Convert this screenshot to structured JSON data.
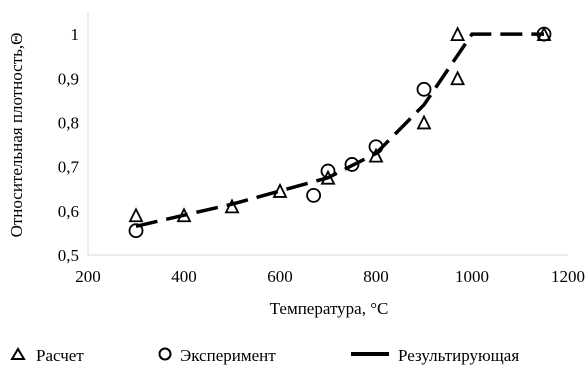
{
  "chart_data": {
    "type": "scatter",
    "title": "",
    "xlabel": "Температура, °С",
    "ylabel": "Относительная плотность,Θ",
    "xlim": [
      200,
      1200
    ],
    "ylim": [
      0.5,
      1.05
    ],
    "xticks": [
      200,
      400,
      600,
      800,
      1000,
      1200
    ],
    "yticks": [
      0.5,
      0.6,
      0.7,
      0.8,
      0.9,
      1.0
    ],
    "xtick_labels": [
      "200",
      "400",
      "600",
      "800",
      "1000",
      "1200"
    ],
    "ytick_labels": [
      "0,5",
      "0,6",
      "0,7",
      "0,8",
      "0,9",
      "1"
    ],
    "grid": false,
    "legend_position": "bottom",
    "series": [
      {
        "name": "Расчет",
        "marker": "triangle",
        "x": [
          300,
          400,
          500,
          600,
          700,
          800,
          900,
          970,
          970,
          1150
        ],
        "y": [
          0.59,
          0.59,
          0.61,
          0.645,
          0.675,
          0.725,
          0.8,
          0.9,
          1.0,
          1.0
        ]
      },
      {
        "name": "Эксперимент",
        "marker": "circle",
        "x": [
          300,
          670,
          700,
          750,
          800,
          900,
          1150
        ],
        "y": [
          0.555,
          0.635,
          0.69,
          0.705,
          0.745,
          0.875,
          1.0
        ]
      },
      {
        "name": "Результирующая",
        "marker": "dashed-line",
        "x": [
          300,
          400,
          500,
          600,
          700,
          800,
          900,
          1000,
          1150
        ],
        "y": [
          0.565,
          0.59,
          0.615,
          0.645,
          0.675,
          0.73,
          0.84,
          1.0,
          1.0
        ]
      }
    ]
  }
}
